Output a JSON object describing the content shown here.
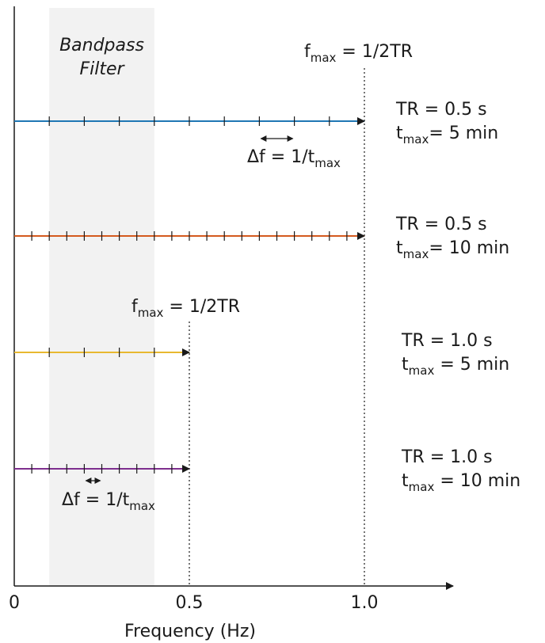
{
  "band": {
    "line1": "Bandpass",
    "line2": "Filter",
    "range_hz": [
      0.1,
      0.4
    ],
    "color": "#f2f2f2"
  },
  "axis": {
    "xlabel": "Frequency (Hz)",
    "xlim": [
      0,
      1.25
    ],
    "ticks": [
      {
        "value": 0,
        "label": "0"
      },
      {
        "value": 0.5,
        "label": "0.5"
      },
      {
        "value": 1.0,
        "label": "1.0"
      }
    ]
  },
  "fmax_labels": [
    {
      "text": "f",
      "sub": "max",
      "rest": " = 1/2TR",
      "at_hz": 1.0
    },
    {
      "text": "f",
      "sub": "max",
      "rest": " = 1/2TR",
      "at_hz": 0.5
    }
  ],
  "delta_labels": [
    {
      "text": "Δf = 1/t",
      "sub": "max",
      "span_hz": [
        0.7,
        0.8
      ]
    },
    {
      "text": "Δf = 1/t",
      "sub": "max",
      "span_hz": [
        0.2,
        0.25
      ]
    }
  ],
  "series": [
    {
      "color": "#1f77b4",
      "fmax": 1.0,
      "df": 0.1,
      "tr_text": "TR = 0.5 s",
      "t_text": "t",
      "t_sub": "max",
      "t_rest": "= 5 min"
    },
    {
      "color": "#d45a1e",
      "fmax": 1.0,
      "df": 0.05,
      "tr_text": "TR = 0.5 s",
      "t_text": "t",
      "t_sub": "max",
      "t_rest": "= 10 min"
    },
    {
      "color": "#e8b830",
      "fmax": 0.5,
      "df": 0.1,
      "tr_text": "TR = 1.0 s",
      "t_text": "t",
      "t_sub": "max",
      "t_rest": " = 5 min"
    },
    {
      "color": "#7e2f8e",
      "fmax": 0.5,
      "df": 0.05,
      "tr_text": "TR = 1.0 s",
      "t_text": "t",
      "t_sub": "max",
      "t_rest": " = 10 min"
    }
  ]
}
